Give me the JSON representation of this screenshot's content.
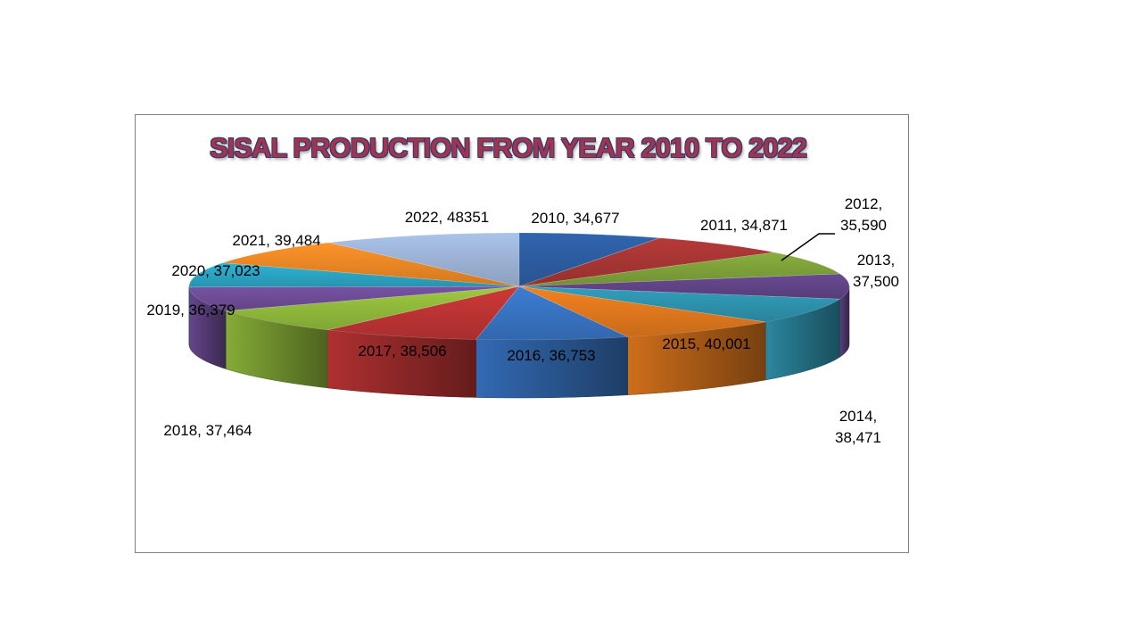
{
  "chart_data": {
    "type": "pie",
    "title": "SISAL PRODUCTION FROM YEAR 2010 TO 2022",
    "categories": [
      "2010",
      "2011",
      "2012",
      "2013",
      "2014",
      "2015",
      "2016",
      "2017",
      "2018",
      "2019",
      "2020",
      "2021",
      "2022"
    ],
    "values": [
      34677,
      34871,
      35590,
      37500,
      38471,
      40001,
      36753,
      38506,
      37464,
      36379,
      37023,
      39484,
      48351
    ],
    "data_labels": [
      [
        "2010, 34,677"
      ],
      [
        "2011, 34,871"
      ],
      [
        "2012,",
        "35,590"
      ],
      [
        "2013,",
        "37,500"
      ],
      [
        "2014,",
        "38,471"
      ],
      [
        "2015, 40,001"
      ],
      [
        "2016, 36,753"
      ],
      [
        "2017, 38,506"
      ],
      [
        "2018, 37,464"
      ],
      [
        "2019, 36,379"
      ],
      [
        "2020, 37,023"
      ],
      [
        "2021, 39,484"
      ],
      [
        "2022, 48351"
      ]
    ],
    "colors": [
      "#2b5a9c",
      "#a23432",
      "#7a9c38",
      "#5e4282",
      "#2d8ea8",
      "#d9741c",
      "#3670bc",
      "#b83232",
      "#8cb43a",
      "#6a4a92",
      "#2aa0be",
      "#e38324",
      "#98aed0"
    ],
    "style": "3d-pie",
    "legend": "none"
  }
}
